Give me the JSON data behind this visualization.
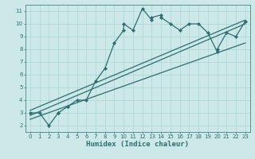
{
  "xlabel": "Humidex (Indice chaleur)",
  "bg_color": "#cce8e8",
  "grid_color": "#b0d8d8",
  "line_color": "#2d6e6e",
  "xlim": [
    -0.5,
    23.5
  ],
  "ylim": [
    1.5,
    11.5
  ],
  "xticks": [
    0,
    1,
    2,
    3,
    4,
    5,
    6,
    7,
    8,
    9,
    10,
    11,
    12,
    13,
    14,
    15,
    16,
    17,
    18,
    19,
    20,
    21,
    22,
    23
  ],
  "yticks": [
    2,
    3,
    4,
    5,
    6,
    7,
    8,
    9,
    10,
    11
  ],
  "main_series_x": [
    0,
    1,
    2,
    3,
    3,
    4,
    4,
    5,
    6,
    7,
    8,
    9,
    10,
    10,
    11,
    12,
    13,
    13,
    14,
    14,
    15,
    16,
    17,
    18,
    19,
    20,
    20,
    21,
    22,
    23
  ],
  "main_series_y": [
    3,
    3,
    2,
    3,
    3,
    3.5,
    3.5,
    4,
    4,
    5.5,
    6.5,
    8.5,
    9.5,
    10,
    9.5,
    11.2,
    10.3,
    10.5,
    10.7,
    10.5,
    10,
    9.5,
    10,
    10,
    9.3,
    7.8,
    8,
    9.3,
    9,
    10.2
  ],
  "line1_x": [
    0,
    23
  ],
  "line1_y": [
    2.8,
    10.0
  ],
  "line2_x": [
    0,
    23
  ],
  "line2_y": [
    2.5,
    8.5
  ],
  "line3_x": [
    0,
    23
  ],
  "line3_y": [
    3.2,
    10.3
  ],
  "marker": "D",
  "markersize": 2.2,
  "linewidth": 0.9
}
